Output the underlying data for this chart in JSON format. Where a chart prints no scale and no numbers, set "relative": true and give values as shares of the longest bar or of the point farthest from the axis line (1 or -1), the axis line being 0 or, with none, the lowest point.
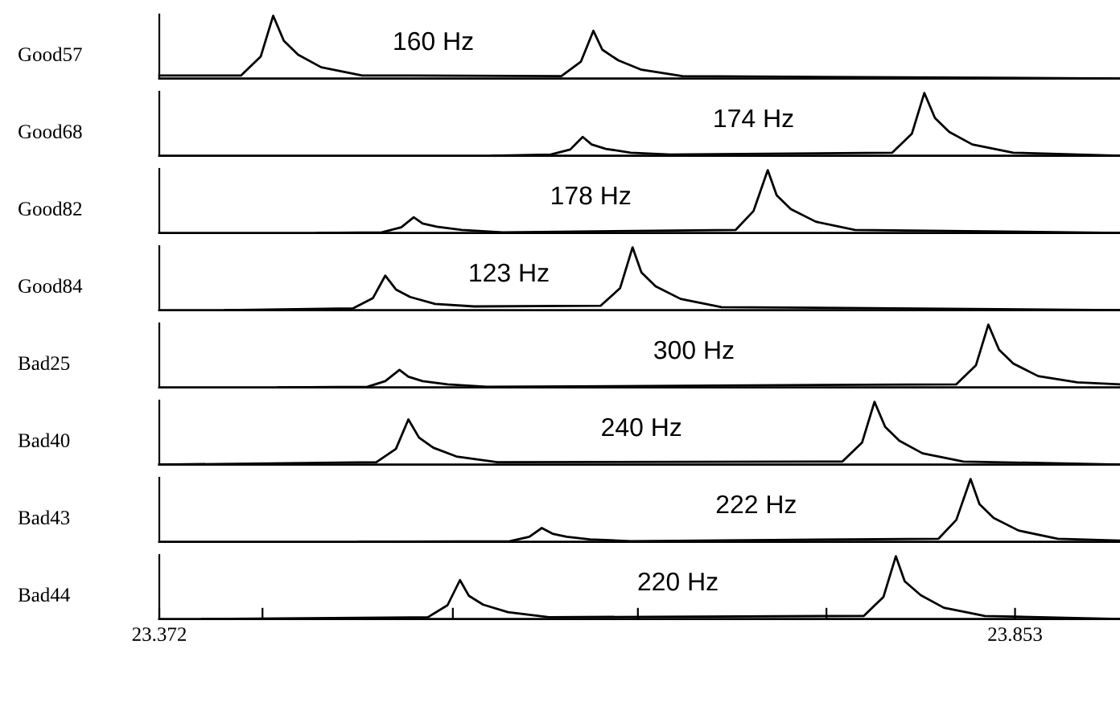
{
  "chart_data": [
    {
      "type": "line",
      "relative": true,
      "ylabel": "Good57",
      "annotations": [
        "160 Hz"
      ],
      "xlim": [
        23.372,
        23.912
      ],
      "tick_labels": false,
      "series": [
        {
          "color": "#000000",
          "x": [
            23.372,
            23.418,
            23.429,
            23.436,
            23.442,
            23.45,
            23.463,
            23.486,
            23.598,
            23.609,
            23.616,
            23.621,
            23.63,
            23.643,
            23.666,
            23.912
          ],
          "values": [
            0.05,
            0.05,
            0.35,
            1,
            0.6,
            0.38,
            0.18,
            0.05,
            0.04,
            0.27,
            0.76,
            0.46,
            0.29,
            0.14,
            0.04,
            0
          ]
        }
      ]
    },
    {
      "type": "line",
      "relative": true,
      "ylabel": "Good68",
      "annotations": [
        "174 Hz"
      ],
      "xlim": [
        23.372,
        23.912
      ],
      "tick_labels": false,
      "series": [
        {
          "color": "#000000",
          "x": [
            23.559,
            23.592,
            23.603,
            23.61,
            23.615,
            23.623,
            23.637,
            23.659,
            23.784,
            23.795,
            23.802,
            23.808,
            23.816,
            23.829,
            23.852,
            23.912
          ],
          "values": [
            0,
            0.02,
            0.1,
            0.3,
            0.18,
            0.11,
            0.05,
            0.02,
            0.05,
            0.35,
            1,
            0.6,
            0.38,
            0.18,
            0.05,
            0
          ]
        }
      ]
    },
    {
      "type": "line",
      "relative": true,
      "ylabel": "Good82",
      "annotations": [
        "178 Hz"
      ],
      "xlim": [
        23.372,
        23.912
      ],
      "tick_labels": false,
      "series": [
        {
          "color": "#000000",
          "x": [
            23.461,
            23.497,
            23.508,
            23.515,
            23.52,
            23.528,
            23.542,
            23.565,
            23.696,
            23.706,
            23.714,
            23.719,
            23.727,
            23.741,
            23.763,
            23.912
          ],
          "values": [
            0,
            0.01,
            0.09,
            0.25,
            0.15,
            0.1,
            0.05,
            0.01,
            0.05,
            0.35,
            1,
            0.6,
            0.38,
            0.18,
            0.05,
            0
          ]
        }
      ]
    },
    {
      "type": "line",
      "relative": true,
      "ylabel": "Good84",
      "annotations": [
        "123 Hz"
      ],
      "xlim": [
        23.372,
        23.912
      ],
      "tick_labels": false,
      "series": [
        {
          "color": "#000000",
          "x": [
            23.409,
            23.481,
            23.492,
            23.499,
            23.505,
            23.513,
            23.527,
            23.549,
            23.62,
            23.631,
            23.638,
            23.643,
            23.651,
            23.665,
            23.688,
            23.912
          ],
          "values": [
            0,
            0.03,
            0.19,
            0.55,
            0.33,
            0.21,
            0.1,
            0.06,
            0.07,
            0.35,
            1,
            0.6,
            0.38,
            0.18,
            0.05,
            0
          ]
        }
      ]
    },
    {
      "type": "line",
      "relative": true,
      "ylabel": "Bad25",
      "annotations": [
        "300 Hz"
      ],
      "xlim": [
        23.372,
        23.912
      ],
      "tick_labels": false,
      "series": [
        {
          "color": "#000000",
          "x": [
            23.439,
            23.489,
            23.499,
            23.507,
            23.512,
            23.52,
            23.534,
            23.556,
            23.82,
            23.831,
            23.838,
            23.844,
            23.852,
            23.866,
            23.888,
            23.912
          ],
          "values": [
            0,
            0.01,
            0.1,
            0.28,
            0.17,
            0.1,
            0.05,
            0.01,
            0.05,
            0.35,
            1,
            0.6,
            0.38,
            0.18,
            0.08,
            0.05
          ]
        }
      ]
    },
    {
      "type": "line",
      "relative": true,
      "ylabel": "Bad40",
      "annotations": [
        "240 Hz"
      ],
      "xlim": [
        23.372,
        23.912
      ],
      "tick_labels": false,
      "series": [
        {
          "color": "#000000",
          "x": [
            23.372,
            23.494,
            23.505,
            23.512,
            23.518,
            23.526,
            23.539,
            23.562,
            23.756,
            23.767,
            23.774,
            23.78,
            23.788,
            23.801,
            23.824,
            23.912
          ],
          "values": [
            0,
            0.04,
            0.25,
            0.72,
            0.43,
            0.27,
            0.13,
            0.04,
            0.05,
            0.35,
            1,
            0.6,
            0.38,
            0.18,
            0.05,
            0
          ]
        }
      ]
    },
    {
      "type": "line",
      "relative": true,
      "ylabel": "Bad43",
      "annotations": [
        "222 Hz"
      ],
      "xlim": [
        23.372,
        23.912
      ],
      "tick_labels": false,
      "series": [
        {
          "color": "#000000",
          "x": [
            23.484,
            23.569,
            23.58,
            23.587,
            23.593,
            23.601,
            23.614,
            23.637,
            23.81,
            23.82,
            23.828,
            23.833,
            23.841,
            23.855,
            23.877,
            23.912
          ],
          "values": [
            0,
            0.01,
            0.08,
            0.22,
            0.13,
            0.08,
            0.04,
            0.01,
            0.05,
            0.35,
            1,
            0.6,
            0.38,
            0.18,
            0.05,
            0.02
          ]
        }
      ]
    },
    {
      "type": "line",
      "relative": true,
      "ylabel": "Bad44",
      "annotations": [
        "220 Hz"
      ],
      "xlim": [
        23.372,
        23.912
      ],
      "tick_labels": "x",
      "xticks": [
        23.372,
        {
          "value": 23.43,
          "label": null
        },
        {
          "value": 23.537,
          "label": null
        },
        {
          "value": 23.641,
          "label": null
        },
        {
          "value": 23.747,
          "label": null
        },
        23.853
      ],
      "series": [
        {
          "color": "#000000",
          "x": [
            23.396,
            23.523,
            23.534,
            23.541,
            23.546,
            23.554,
            23.568,
            23.591,
            23.768,
            23.779,
            23.786,
            23.791,
            23.8,
            23.813,
            23.836,
            23.912
          ],
          "values": [
            0,
            0.03,
            0.22,
            0.62,
            0.37,
            0.23,
            0.11,
            0.03,
            0.05,
            0.35,
            1,
            0.6,
            0.38,
            0.18,
            0.05,
            0
          ]
        }
      ]
    }
  ]
}
